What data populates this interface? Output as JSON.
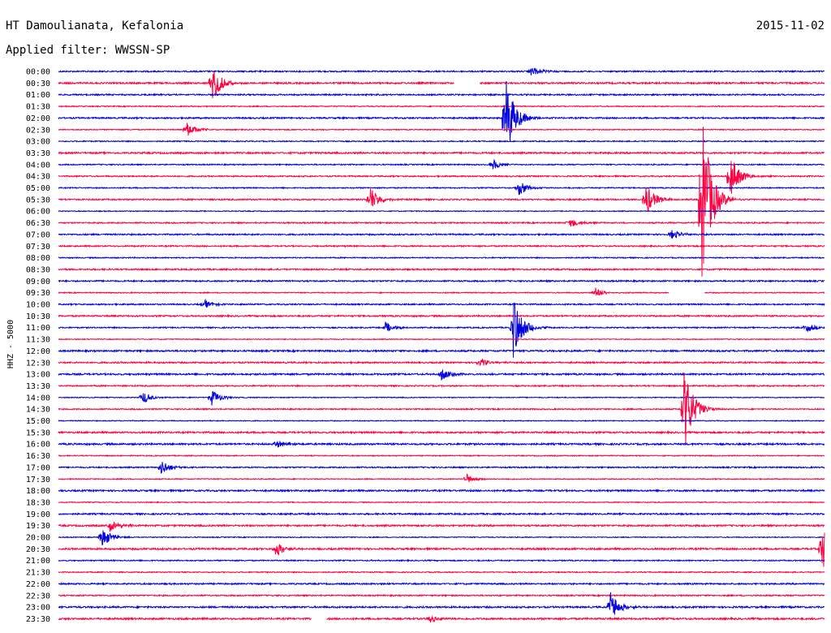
{
  "header": {
    "station": "HT Damoulianata, Kefalonia",
    "date": "2015-11-02",
    "filter": "Applied filter: WWSSN-SP"
  },
  "chart_data": {
    "type": "line",
    "title": "HT Damoulianata, Kefalonia",
    "subtitle": "Applied filter: WWSSN-SP",
    "ylabel": "HHZ - 5000",
    "xlabel": "",
    "colors": {
      "odd": "#0000e0",
      "even": "#ff0040"
    },
    "rows": [
      "00:00",
      "00:30",
      "01:00",
      "01:30",
      "02:00",
      "02:30",
      "03:00",
      "03:30",
      "04:00",
      "04:30",
      "05:00",
      "05:30",
      "06:00",
      "06:30",
      "07:00",
      "07:30",
      "08:00",
      "08:30",
      "09:00",
      "09:30",
      "10:00",
      "10:30",
      "11:00",
      "11:30",
      "12:00",
      "12:30",
      "13:00",
      "13:30",
      "14:00",
      "14:30",
      "15:00",
      "15:30",
      "16:00",
      "16:30",
      "17:00",
      "17:30",
      "18:00",
      "18:30",
      "19:00",
      "19:30",
      "20:00",
      "20:30",
      "21:00",
      "21:30",
      "22:00",
      "22:30",
      "23:00",
      "23:30"
    ],
    "events": [
      {
        "row": 0,
        "minute": 18.5,
        "amplitude": 0.9
      },
      {
        "row": 1,
        "minute": 6.0,
        "amplitude": 3.5
      },
      {
        "row": 4,
        "minute": 17.5,
        "amplitude": 8.0
      },
      {
        "row": 5,
        "minute": 5.0,
        "amplitude": 1.5
      },
      {
        "row": 8,
        "minute": 17.0,
        "amplitude": 1.0
      },
      {
        "row": 9,
        "minute": 26.3,
        "amplitude": 4.0
      },
      {
        "row": 10,
        "minute": 18.0,
        "amplitude": 1.5
      },
      {
        "row": 11,
        "minute": 12.2,
        "amplitude": 2.5
      },
      {
        "row": 11,
        "minute": 23.0,
        "amplitude": 3.0
      },
      {
        "row": 11,
        "minute": 25.2,
        "amplitude": 16.0
      },
      {
        "row": 13,
        "minute": 20.0,
        "amplitude": 1.0
      },
      {
        "row": 14,
        "minute": 24.0,
        "amplitude": 1.0
      },
      {
        "row": 19,
        "minute": 21.0,
        "amplitude": 1.0
      },
      {
        "row": 20,
        "minute": 5.7,
        "amplitude": 0.8
      },
      {
        "row": 22,
        "minute": 12.8,
        "amplitude": 1.0
      },
      {
        "row": 22,
        "minute": 17.8,
        "amplitude": 6.0
      },
      {
        "row": 22,
        "minute": 29.3,
        "amplitude": 0.8
      },
      {
        "row": 25,
        "minute": 16.5,
        "amplitude": 0.8
      },
      {
        "row": 26,
        "minute": 15.0,
        "amplitude": 1.2
      },
      {
        "row": 28,
        "minute": 3.3,
        "amplitude": 1.2
      },
      {
        "row": 28,
        "minute": 6.0,
        "amplitude": 1.5
      },
      {
        "row": 29,
        "minute": 24.5,
        "amplitude": 8.0
      },
      {
        "row": 32,
        "minute": 8.5,
        "amplitude": 0.8
      },
      {
        "row": 34,
        "minute": 4.0,
        "amplitude": 1.5
      },
      {
        "row": 35,
        "minute": 16.0,
        "amplitude": 0.8
      },
      {
        "row": 39,
        "minute": 2.0,
        "amplitude": 1.2
      },
      {
        "row": 40,
        "minute": 1.7,
        "amplitude": 2.0
      },
      {
        "row": 41,
        "minute": 8.5,
        "amplitude": 1.5
      },
      {
        "row": 41,
        "minute": 29.9,
        "amplitude": 5.0
      },
      {
        "row": 46,
        "minute": 21.6,
        "amplitude": 3.0
      },
      {
        "row": 47,
        "minute": 14.5,
        "amplitude": 0.8
      }
    ],
    "gaps": [
      {
        "row": 1,
        "start": 15.5,
        "end": 16.5
      },
      {
        "row": 19,
        "start": 23.9,
        "end": 25.3
      },
      {
        "row": 47,
        "start": 9.9,
        "end": 10.5
      }
    ],
    "grid": false
  }
}
